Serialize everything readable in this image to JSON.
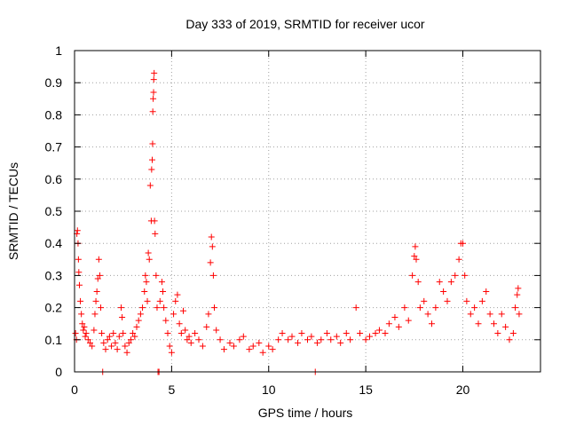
{
  "chart_data": {
    "type": "scatter",
    "title": "Day 333 of 2019, SRMTID for receiver ucor",
    "xlabel": "GPS time / hours",
    "ylabel": "SRMTID / TECUs",
    "xlim": [
      0,
      24
    ],
    "ylim": [
      0,
      1
    ],
    "xticks": [
      0,
      5,
      10,
      15,
      20
    ],
    "yticks": [
      0,
      0.1,
      0.2,
      0.3,
      0.4,
      0.5,
      0.6,
      0.7,
      0.8,
      0.9,
      1
    ],
    "ytick_labels": [
      "0",
      "0.1",
      "0.2",
      "0.3",
      "0.4",
      "0.5",
      "0.6",
      "0.7",
      "0.8",
      "0.9",
      "1"
    ],
    "grid": true,
    "marker": "+",
    "marker_color": "#ff0000",
    "series": [
      {
        "name": "SRMTID",
        "points": [
          [
            0.05,
            0.12
          ],
          [
            0.1,
            0.1
          ],
          [
            0.12,
            0.43
          ],
          [
            0.15,
            0.44
          ],
          [
            0.18,
            0.4
          ],
          [
            0.2,
            0.35
          ],
          [
            0.22,
            0.31
          ],
          [
            0.25,
            0.27
          ],
          [
            0.3,
            0.22
          ],
          [
            0.35,
            0.18
          ],
          [
            0.4,
            0.15
          ],
          [
            0.45,
            0.13
          ],
          [
            0.5,
            0.14
          ],
          [
            0.55,
            0.11
          ],
          [
            0.6,
            0.12
          ],
          [
            0.7,
            0.1
          ],
          [
            0.8,
            0.09
          ],
          [
            0.9,
            0.08
          ],
          [
            1.0,
            0.13
          ],
          [
            1.05,
            0.18
          ],
          [
            1.1,
            0.22
          ],
          [
            1.15,
            0.25
          ],
          [
            1.2,
            0.29
          ],
          [
            1.25,
            0.35
          ],
          [
            1.3,
            0.3
          ],
          [
            1.35,
            0.2
          ],
          [
            1.4,
            0.12
          ],
          [
            1.45,
            0.0
          ],
          [
            1.5,
            0.09
          ],
          [
            1.6,
            0.07
          ],
          [
            1.7,
            0.1
          ],
          [
            1.8,
            0.11
          ],
          [
            1.9,
            0.08
          ],
          [
            2.0,
            0.12
          ],
          [
            2.1,
            0.09
          ],
          [
            2.2,
            0.07
          ],
          [
            2.3,
            0.11
          ],
          [
            2.4,
            0.2
          ],
          [
            2.45,
            0.17
          ],
          [
            2.5,
            0.12
          ],
          [
            2.6,
            0.08
          ],
          [
            2.7,
            0.06
          ],
          [
            2.8,
            0.09
          ],
          [
            2.9,
            0.1
          ],
          [
            3.0,
            0.12
          ],
          [
            3.1,
            0.11
          ],
          [
            3.2,
            0.14
          ],
          [
            3.3,
            0.16
          ],
          [
            3.4,
            0.18
          ],
          [
            3.5,
            0.2
          ],
          [
            3.6,
            0.25
          ],
          [
            3.65,
            0.3
          ],
          [
            3.7,
            0.28
          ],
          [
            3.75,
            0.22
          ],
          [
            3.8,
            0.37
          ],
          [
            3.85,
            0.35
          ],
          [
            3.9,
            0.58
          ],
          [
            3.95,
            0.47
          ],
          [
            3.97,
            0.63
          ],
          [
            4.0,
            0.66
          ],
          [
            4.02,
            0.71
          ],
          [
            4.03,
            0.81
          ],
          [
            4.05,
            0.85
          ],
          [
            4.07,
            0.87
          ],
          [
            4.08,
            0.91
          ],
          [
            4.1,
            0.93
          ],
          [
            4.12,
            0.47
          ],
          [
            4.15,
            0.43
          ],
          [
            4.2,
            0.3
          ],
          [
            4.25,
            0.2
          ],
          [
            4.3,
            0.0
          ],
          [
            4.35,
            0.0
          ],
          [
            4.4,
            0.22
          ],
          [
            4.5,
            0.28
          ],
          [
            4.55,
            0.25
          ],
          [
            4.6,
            0.2
          ],
          [
            4.7,
            0.16
          ],
          [
            4.8,
            0.12
          ],
          [
            4.9,
            0.08
          ],
          [
            5.0,
            0.06
          ],
          [
            5.1,
            0.18
          ],
          [
            5.2,
            0.22
          ],
          [
            5.3,
            0.24
          ],
          [
            5.4,
            0.15
          ],
          [
            5.5,
            0.12
          ],
          [
            5.6,
            0.19
          ],
          [
            5.7,
            0.13
          ],
          [
            5.8,
            0.1
          ],
          [
            5.9,
            0.11
          ],
          [
            6.0,
            0.09
          ],
          [
            6.2,
            0.12
          ],
          [
            6.4,
            0.1
          ],
          [
            6.6,
            0.08
          ],
          [
            6.8,
            0.14
          ],
          [
            6.9,
            0.18
          ],
          [
            7.0,
            0.34
          ],
          [
            7.05,
            0.42
          ],
          [
            7.1,
            0.39
          ],
          [
            7.15,
            0.3
          ],
          [
            7.2,
            0.2
          ],
          [
            7.3,
            0.13
          ],
          [
            7.5,
            0.1
          ],
          [
            7.7,
            0.07
          ],
          [
            8.0,
            0.09
          ],
          [
            8.2,
            0.08
          ],
          [
            8.5,
            0.1
          ],
          [
            8.7,
            0.11
          ],
          [
            9.0,
            0.07
          ],
          [
            9.2,
            0.08
          ],
          [
            9.5,
            0.09
          ],
          [
            9.7,
            0.06
          ],
          [
            10.0,
            0.08
          ],
          [
            10.2,
            0.07
          ],
          [
            10.5,
            0.1
          ],
          [
            10.7,
            0.12
          ],
          [
            11.0,
            0.1
          ],
          [
            11.2,
            0.11
          ],
          [
            11.5,
            0.09
          ],
          [
            11.7,
            0.12
          ],
          [
            12.0,
            0.1
          ],
          [
            12.2,
            0.11
          ],
          [
            12.4,
            0.0
          ],
          [
            12.5,
            0.09
          ],
          [
            12.7,
            0.1
          ],
          [
            13.0,
            0.12
          ],
          [
            13.2,
            0.1
          ],
          [
            13.5,
            0.11
          ],
          [
            13.7,
            0.09
          ],
          [
            14.0,
            0.12
          ],
          [
            14.2,
            0.1
          ],
          [
            14.5,
            0.2
          ],
          [
            14.7,
            0.12
          ],
          [
            15.0,
            0.1
          ],
          [
            15.2,
            0.11
          ],
          [
            15.5,
            0.12
          ],
          [
            15.7,
            0.13
          ],
          [
            16.0,
            0.12
          ],
          [
            16.2,
            0.15
          ],
          [
            16.5,
            0.17
          ],
          [
            16.7,
            0.14
          ],
          [
            17.0,
            0.2
          ],
          [
            17.2,
            0.16
          ],
          [
            17.4,
            0.3
          ],
          [
            17.5,
            0.36
          ],
          [
            17.55,
            0.39
          ],
          [
            17.6,
            0.35
          ],
          [
            17.7,
            0.28
          ],
          [
            17.8,
            0.2
          ],
          [
            18.0,
            0.22
          ],
          [
            18.2,
            0.18
          ],
          [
            18.4,
            0.15
          ],
          [
            18.6,
            0.2
          ],
          [
            18.8,
            0.28
          ],
          [
            19.0,
            0.25
          ],
          [
            19.2,
            0.22
          ],
          [
            19.4,
            0.28
          ],
          [
            19.6,
            0.3
          ],
          [
            19.8,
            0.35
          ],
          [
            19.9,
            0.4
          ],
          [
            20.0,
            0.4
          ],
          [
            20.1,
            0.3
          ],
          [
            20.2,
            0.22
          ],
          [
            20.4,
            0.18
          ],
          [
            20.6,
            0.2
          ],
          [
            20.8,
            0.15
          ],
          [
            21.0,
            0.22
          ],
          [
            21.2,
            0.25
          ],
          [
            21.4,
            0.18
          ],
          [
            21.6,
            0.15
          ],
          [
            21.8,
            0.12
          ],
          [
            22.0,
            0.18
          ],
          [
            22.2,
            0.14
          ],
          [
            22.4,
            0.1
          ],
          [
            22.6,
            0.12
          ],
          [
            22.7,
            0.2
          ],
          [
            22.8,
            0.24
          ],
          [
            22.85,
            0.26
          ],
          [
            22.9,
            0.18
          ]
        ]
      }
    ]
  }
}
